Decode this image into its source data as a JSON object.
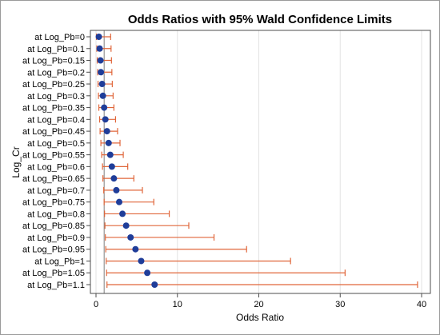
{
  "chart_data": {
    "type": "scatter",
    "title": "Odds Ratios with 95% Wald Confidence Limits",
    "xlabel": "Odds Ratio",
    "ylabel": "Log_Cr",
    "xlim": [
      0,
      40
    ],
    "xticks": [
      "0",
      "10",
      "20",
      "30",
      "40"
    ],
    "grid": true,
    "reference_line_x": 1,
    "colors": {
      "point": "#1f3d99",
      "interval": "#e0663a",
      "grid": "#e3e3e3",
      "refline": "#7f7f7f"
    },
    "categories": [
      "at Log_Pb=0",
      "at Log_Pb=0.1",
      "at Log_Pb=0.15",
      "at Log_Pb=0.2",
      "at Log_Pb=0.25",
      "at Log_Pb=0.3",
      "at Log_Pb=0.35",
      "at Log_Pb=0.4",
      "at Log_Pb=0.45",
      "at Log_Pb=0.5",
      "at Log_Pb=0.55",
      "at Log_Pb=0.6",
      "at Log_Pb=0.65",
      "at Log_Pb=0.7",
      "at Log_Pb=0.75",
      "at Log_Pb=0.8",
      "at Log_Pb=0.85",
      "at Log_Pb=0.9",
      "at Log_Pb=0.95",
      "at Log_Pb=1",
      "at Log_Pb=1.05",
      "at Log_Pb=1.1"
    ],
    "estimate": [
      0.35,
      0.45,
      0.55,
      0.6,
      0.75,
      0.85,
      1.0,
      1.15,
      1.35,
      1.55,
      1.75,
      1.95,
      2.2,
      2.5,
      2.85,
      3.25,
      3.7,
      4.25,
      4.85,
      5.55,
      6.3,
      7.2
    ],
    "lower": [
      0.05,
      0.1,
      0.15,
      0.2,
      0.25,
      0.3,
      0.35,
      0.45,
      0.5,
      0.6,
      0.7,
      0.8,
      0.85,
      0.95,
      1.0,
      1.05,
      1.1,
      1.15,
      1.2,
      1.25,
      1.3,
      1.35
    ],
    "upper": [
      1.8,
      1.85,
      1.9,
      1.95,
      2.0,
      2.1,
      2.2,
      2.4,
      2.65,
      2.95,
      3.35,
      3.9,
      4.65,
      5.7,
      7.1,
      9.0,
      11.4,
      14.5,
      18.5,
      23.9,
      30.6,
      39.5
    ]
  }
}
